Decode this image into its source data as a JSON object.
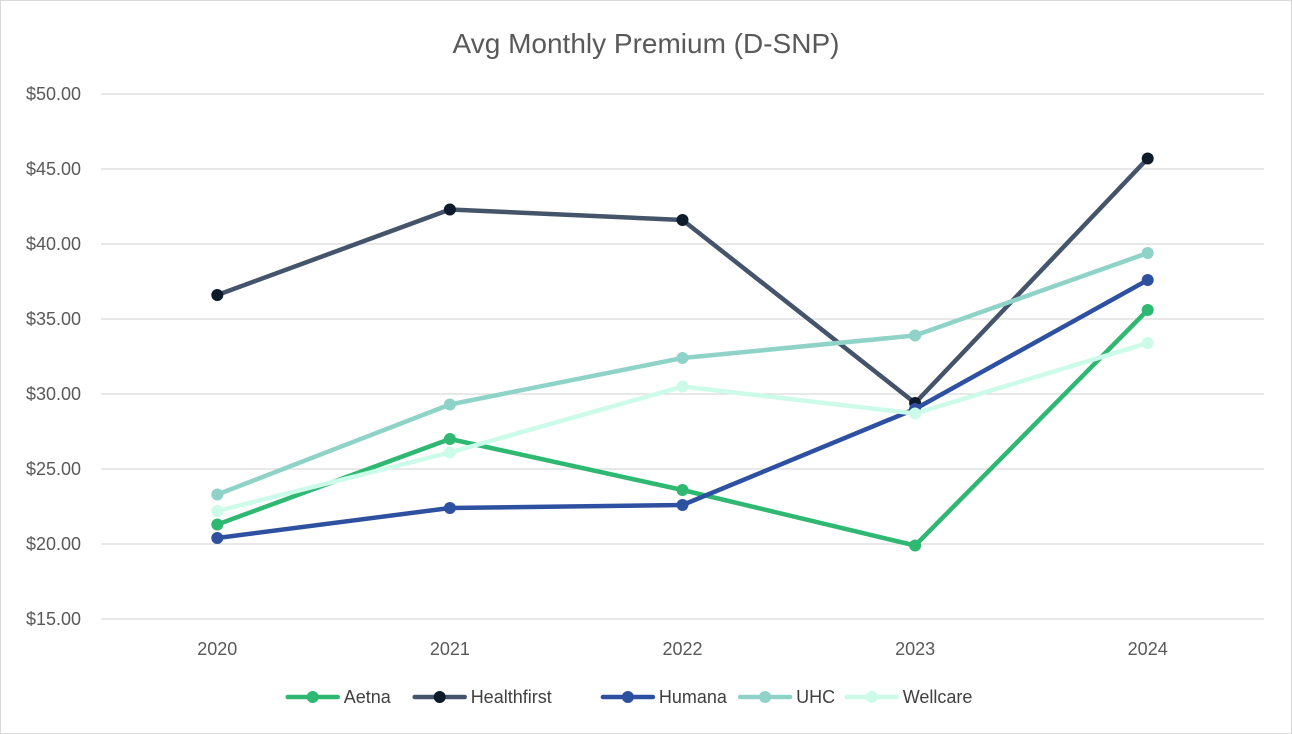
{
  "chart_data": {
    "type": "line",
    "title": "Avg Monthly Premium (D-SNP)",
    "xlabel": "",
    "ylabel": "",
    "categories": [
      "2020",
      "2021",
      "2022",
      "2023",
      "2024"
    ],
    "ylim": [
      15,
      50
    ],
    "y_ticks": [
      "$15.00",
      "$20.00",
      "$25.00",
      "$30.00",
      "$35.00",
      "$40.00",
      "$45.00",
      "$50.00"
    ],
    "grid": true,
    "legend_position": "bottom",
    "series": [
      {
        "name": "Aetna",
        "color": "#2EB872",
        "values": [
          21.3,
          27.0,
          23.6,
          19.9,
          35.6
        ]
      },
      {
        "name": "Healthfirst",
        "color": "#44546A",
        "marker_color": "#0D1B2A",
        "values": [
          36.6,
          42.3,
          41.6,
          29.4,
          45.7
        ]
      },
      {
        "name": "Humana",
        "color": "#2E50A0",
        "values": [
          20.4,
          22.4,
          22.6,
          29.0,
          37.6
        ]
      },
      {
        "name": "UHC",
        "color": "#8FD3C8",
        "values": [
          23.3,
          29.3,
          32.4,
          33.9,
          39.4
        ]
      },
      {
        "name": "Wellcare",
        "color": "#CCFBEA",
        "values": [
          22.2,
          26.1,
          30.5,
          28.7,
          33.4
        ]
      }
    ]
  }
}
